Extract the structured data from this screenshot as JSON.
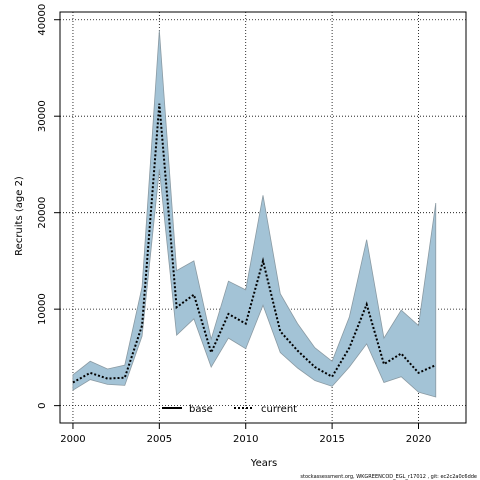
{
  "chart_data": {
    "type": "area",
    "xlabel": "Years",
    "ylabel": "Recruits (age 2)",
    "xlim": [
      1999.25,
      2022.75
    ],
    "ylim": [
      -1800,
      40800
    ],
    "x_ticks": [
      2000,
      2005,
      2010,
      2015,
      2020
    ],
    "y_ticks": [
      0,
      10000,
      20000,
      30000,
      40000
    ],
    "grid": true,
    "legend": {
      "placement": "bottom-center",
      "entries": [
        {
          "label": "base",
          "style": "solid"
        },
        {
          "label": "current",
          "style": "dotted"
        }
      ]
    },
    "x": [
      2000,
      2001,
      2002,
      2003,
      2004,
      2005,
      2006,
      2007,
      2008,
      2009,
      2010,
      2011,
      2012,
      2013,
      2014,
      2015,
      2016,
      2017,
      2018,
      2019,
      2020,
      2021
    ],
    "series": [
      {
        "name": "current",
        "values": [
          2400,
          3400,
          2800,
          2900,
          8300,
          31300,
          10200,
          11500,
          5500,
          9500,
          8500,
          15000,
          7700,
          5700,
          4000,
          3000,
          6000,
          10500,
          4300,
          5400,
          3400,
          4200
        ],
        "lower": [
          1600,
          2700,
          2200,
          2100,
          7200,
          24500,
          7300,
          9000,
          4000,
          7000,
          5900,
          10400,
          5500,
          3900,
          2600,
          2000,
          4000,
          6400,
          2400,
          3000,
          1400,
          900
        ],
        "upper": [
          3200,
          4600,
          3800,
          4200,
          12300,
          38900,
          14000,
          15000,
          6900,
          12900,
          12000,
          21800,
          11600,
          8500,
          6000,
          4600,
          9200,
          17200,
          7000,
          9900,
          8300,
          21000
        ]
      }
    ],
    "colors": {
      "band_fill": "#a3c3d6",
      "band_edge": "#8a9aa3",
      "line": "#000000",
      "grid": "#000000"
    }
  },
  "footer": {
    "credit": "stockassessment.org, WKGREENCOD_EGL_r17012 , git: ec2c2a0c6dde"
  }
}
